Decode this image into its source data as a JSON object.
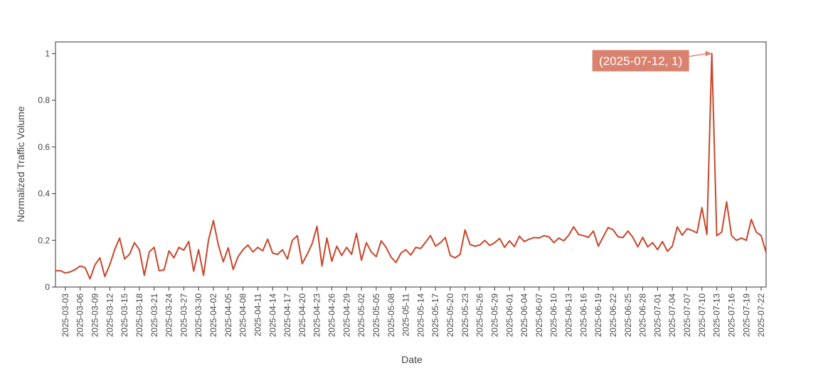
{
  "chart_data": {
    "type": "line",
    "title": "",
    "xlabel": "Date",
    "ylabel": "Normalized Traffic Volume",
    "x_start": "2025-03-01",
    "x_end": "2025-07-23",
    "ylim": [
      0,
      1.05
    ],
    "y_ticks": [
      0,
      0.2,
      0.4,
      0.6,
      0.8,
      1
    ],
    "y_tick_labels": [
      "0",
      "0.2",
      "0.4",
      "0.6",
      "0.8",
      "1"
    ],
    "x_tick_labels": [
      "2025-03-03",
      "2025-03-06",
      "2025-03-09",
      "2025-03-12",
      "2025-03-15",
      "2025-03-18",
      "2025-03-21",
      "2025-03-24",
      "2025-03-27",
      "2025-03-30",
      "2025-04-02",
      "2025-04-05",
      "2025-04-08",
      "2025-04-11",
      "2025-04-14",
      "2025-04-17",
      "2025-04-20",
      "2025-04-23",
      "2025-04-26",
      "2025-04-29",
      "2025-05-02",
      "2025-05-05",
      "2025-05-08",
      "2025-05-11",
      "2025-05-14",
      "2025-05-17",
      "2025-05-20",
      "2025-05-23",
      "2025-05-26",
      "2025-05-29",
      "2025-06-01",
      "2025-06-04",
      "2025-06-07",
      "2025-06-10",
      "2025-06-13",
      "2025-06-16",
      "2025-06-19",
      "2025-06-22",
      "2025-06-25",
      "2025-06-28",
      "2025-07-01",
      "2025-07-04",
      "2025-07-07",
      "2025-07-10",
      "2025-07-13",
      "2025-07-16",
      "2025-07-19",
      "2025-07-22"
    ],
    "series": [
      {
        "color": "#c8462b",
        "x": [
          "2025-03-01",
          "2025-03-02",
          "2025-03-03",
          "2025-03-04",
          "2025-03-05",
          "2025-03-06",
          "2025-03-07",
          "2025-03-08",
          "2025-03-09",
          "2025-03-10",
          "2025-03-11",
          "2025-03-12",
          "2025-03-13",
          "2025-03-14",
          "2025-03-15",
          "2025-03-16",
          "2025-03-17",
          "2025-03-18",
          "2025-03-19",
          "2025-03-20",
          "2025-03-21",
          "2025-03-22",
          "2025-03-23",
          "2025-03-24",
          "2025-03-25",
          "2025-03-26",
          "2025-03-27",
          "2025-03-28",
          "2025-03-29",
          "2025-03-30",
          "2025-03-31",
          "2025-04-01",
          "2025-04-02",
          "2025-04-03",
          "2025-04-04",
          "2025-04-05",
          "2025-04-06",
          "2025-04-07",
          "2025-04-08",
          "2025-04-09",
          "2025-04-10",
          "2025-04-11",
          "2025-04-12",
          "2025-04-13",
          "2025-04-14",
          "2025-04-15",
          "2025-04-16",
          "2025-04-17",
          "2025-04-18",
          "2025-04-19",
          "2025-04-20",
          "2025-04-21",
          "2025-04-22",
          "2025-04-23",
          "2025-04-24",
          "2025-04-25",
          "2025-04-26",
          "2025-04-27",
          "2025-04-28",
          "2025-04-29",
          "2025-04-30",
          "2025-05-01",
          "2025-05-02",
          "2025-05-03",
          "2025-05-04",
          "2025-05-05",
          "2025-05-06",
          "2025-05-07",
          "2025-05-08",
          "2025-05-09",
          "2025-05-10",
          "2025-05-11",
          "2025-05-12",
          "2025-05-13",
          "2025-05-14",
          "2025-05-15",
          "2025-05-16",
          "2025-05-17",
          "2025-05-18",
          "2025-05-19",
          "2025-05-20",
          "2025-05-21",
          "2025-05-22",
          "2025-05-23",
          "2025-05-24",
          "2025-05-25",
          "2025-05-26",
          "2025-05-27",
          "2025-05-28",
          "2025-05-29",
          "2025-05-30",
          "2025-05-31",
          "2025-06-01",
          "2025-06-02",
          "2025-06-03",
          "2025-06-04",
          "2025-06-05",
          "2025-06-06",
          "2025-06-07",
          "2025-06-08",
          "2025-06-09",
          "2025-06-10",
          "2025-06-11",
          "2025-06-12",
          "2025-06-13",
          "2025-06-14",
          "2025-06-15",
          "2025-06-16",
          "2025-06-17",
          "2025-06-18",
          "2025-06-19",
          "2025-06-20",
          "2025-06-21",
          "2025-06-22",
          "2025-06-23",
          "2025-06-24",
          "2025-06-25",
          "2025-06-26",
          "2025-06-27",
          "2025-06-28",
          "2025-06-29",
          "2025-06-30",
          "2025-07-01",
          "2025-07-02",
          "2025-07-03",
          "2025-07-04",
          "2025-07-05",
          "2025-07-06",
          "2025-07-07",
          "2025-07-08",
          "2025-07-09",
          "2025-07-10",
          "2025-07-11",
          "2025-07-12",
          "2025-07-13",
          "2025-07-14",
          "2025-07-15",
          "2025-07-16",
          "2025-07-17",
          "2025-07-18",
          "2025-07-19",
          "2025-07-20",
          "2025-07-21",
          "2025-07-22",
          "2025-07-23"
        ],
        "y": [
          0.07,
          0.07,
          0.06,
          0.065,
          0.075,
          0.09,
          0.083,
          0.035,
          0.095,
          0.125,
          0.045,
          0.095,
          0.16,
          0.21,
          0.12,
          0.14,
          0.19,
          0.16,
          0.05,
          0.15,
          0.17,
          0.07,
          0.073,
          0.155,
          0.125,
          0.17,
          0.158,
          0.195,
          0.068,
          0.16,
          0.05,
          0.2,
          0.285,
          0.18,
          0.108,
          0.168,
          0.075,
          0.13,
          0.16,
          0.18,
          0.15,
          0.17,
          0.155,
          0.205,
          0.145,
          0.14,
          0.16,
          0.12,
          0.2,
          0.22,
          0.1,
          0.14,
          0.185,
          0.26,
          0.09,
          0.21,
          0.11,
          0.175,
          0.135,
          0.17,
          0.14,
          0.23,
          0.115,
          0.19,
          0.15,
          0.13,
          0.198,
          0.17,
          0.128,
          0.105,
          0.145,
          0.16,
          0.137,
          0.17,
          0.165,
          0.192,
          0.22,
          0.175,
          0.19,
          0.212,
          0.135,
          0.125,
          0.14,
          0.245,
          0.182,
          0.175,
          0.18,
          0.2,
          0.178,
          0.19,
          0.208,
          0.17,
          0.198,
          0.173,
          0.218,
          0.195,
          0.205,
          0.212,
          0.21,
          0.22,
          0.215,
          0.19,
          0.21,
          0.198,
          0.222,
          0.258,
          0.225,
          0.22,
          0.213,
          0.24,
          0.175,
          0.215,
          0.255,
          0.245,
          0.215,
          0.212,
          0.24,
          0.213,
          0.172,
          0.213,
          0.172,
          0.19,
          0.16,
          0.195,
          0.153,
          0.175,
          0.258,
          0.222,
          0.25,
          0.242,
          0.232,
          0.34,
          0.225,
          1,
          0.22,
          0.235,
          0.365,
          0.22,
          0.2,
          0.21,
          0.2,
          0.29,
          0.235,
          0.22,
          0.148
        ]
      }
    ],
    "annotation": {
      "text": "(2025-07-12, 1)",
      "x": "2025-07-12",
      "y": 1,
      "bg_color": "#d9826f"
    },
    "grid": false,
    "legend": "none"
  }
}
